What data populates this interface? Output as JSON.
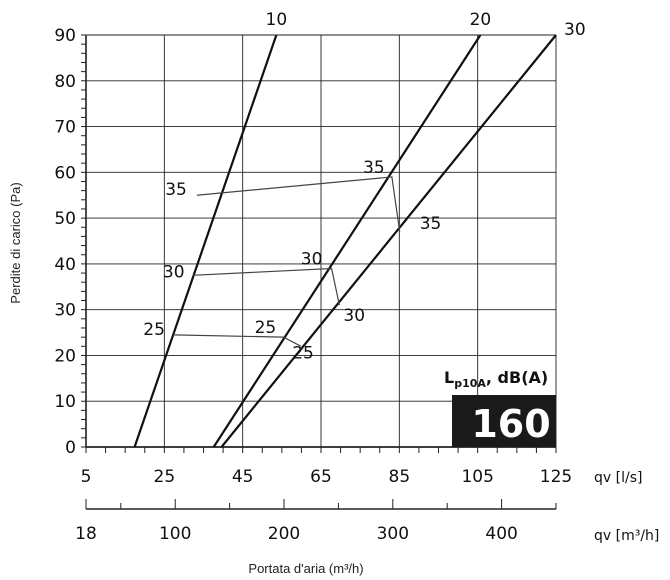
{
  "chart_data": {
    "type": "line",
    "xlabel_bottom": "Portata d'aria (m³/h)",
    "ylabel": "Perdite di carico  (Pa)",
    "x_unit_primary": "qv [l/s]",
    "x_unit_secondary": "qv [m³/h]",
    "xlim": [
      5,
      125
    ],
    "ylim": [
      0,
      90
    ],
    "grid": true,
    "x_ticks": [
      "5",
      "25",
      "45",
      "65",
      "85",
      "105",
      "125"
    ],
    "x2_ticks": [
      "18",
      "100",
      "200",
      "300",
      "400"
    ],
    "y_ticks": [
      "0",
      "10",
      "20",
      "30",
      "40",
      "50",
      "60",
      "70",
      "80",
      "90"
    ],
    "series": [
      {
        "name": "10",
        "x": [
          17.4,
          53.6
        ],
        "y": [
          0,
          90
        ]
      },
      {
        "name": "20",
        "x": [
          37.6,
          105.7
        ],
        "y": [
          0,
          90
        ]
      },
      {
        "name": "30",
        "x": [
          39.6,
          125
        ],
        "y": [
          0,
          90
        ]
      }
    ],
    "annotations": [
      {
        "points": [
          [
            33.3,
            55
          ],
          [
            83.1,
            59
          ],
          [
            85.1,
            47
          ]
        ],
        "labels": [
          "35",
          "35",
          "35"
        ]
      },
      {
        "points": [
          [
            32.2,
            37.5
          ],
          [
            67.7,
            39
          ],
          [
            69.7,
            31
          ]
        ],
        "labels": [
          "30",
          "30",
          "30"
        ]
      },
      {
        "points": [
          [
            27.2,
            24.5
          ],
          [
            55.4,
            24
          ],
          [
            59.9,
            22
          ]
        ],
        "labels": [
          "25",
          "25",
          "25"
        ]
      }
    ],
    "badge": {
      "label": "L",
      "label_sub": "p10A",
      "label_suffix": ", dB(A)",
      "value": "160"
    }
  }
}
